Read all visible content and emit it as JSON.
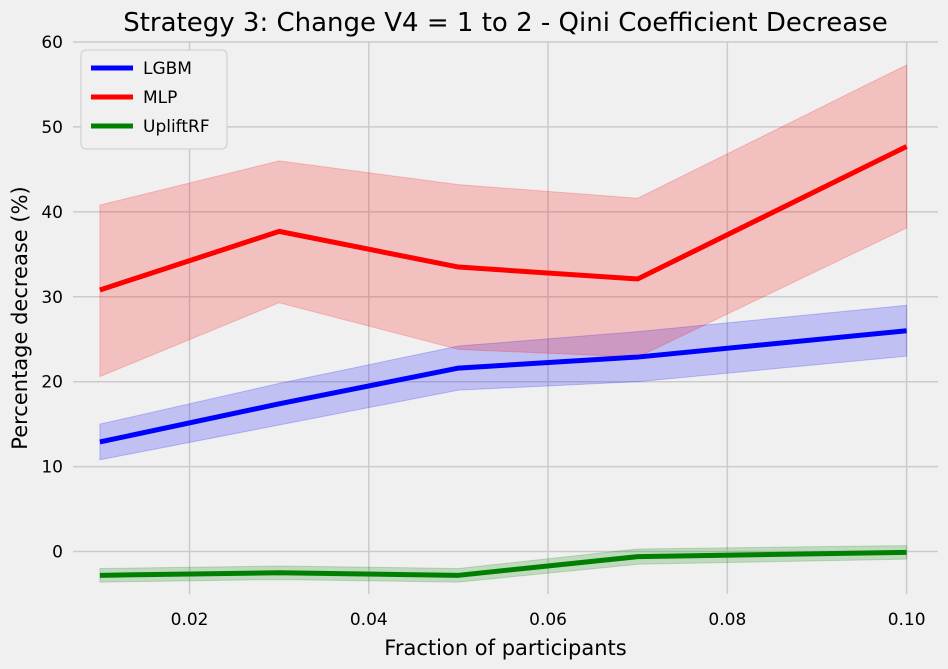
{
  "chart_data": {
    "type": "line",
    "title": "Strategy 3: Change V4 = 1 to 2 - Qini Coefficient Decrease",
    "xlabel": "Fraction of participants",
    "ylabel": "Percentage decrease (%)",
    "x": [
      0.01,
      0.03,
      0.05,
      0.07,
      0.1
    ],
    "xlim": [
      0.007,
      0.1035
    ],
    "ylim": [
      -5,
      60
    ],
    "xticks": [
      0.02,
      0.04,
      0.06,
      0.08,
      0.1
    ],
    "xtick_labels": [
      "0.02",
      "0.04",
      "0.06",
      "0.08",
      "0.10"
    ],
    "yticks": [
      0,
      10,
      20,
      30,
      40,
      50,
      60
    ],
    "ytick_labels": [
      "0",
      "10",
      "20",
      "30",
      "40",
      "50",
      "60"
    ],
    "grid": true,
    "legend_position": "upper-left",
    "series": [
      {
        "name": "LGBM",
        "color": "#0000ff",
        "values": [
          12.9,
          17.4,
          21.6,
          22.9,
          26.0
        ],
        "lower": [
          10.8,
          14.9,
          19.0,
          20.0,
          23.0
        ],
        "upper": [
          15.0,
          19.8,
          24.2,
          25.9,
          29.0
        ]
      },
      {
        "name": "MLP",
        "color": "#ff0000",
        "values": [
          30.8,
          37.7,
          33.5,
          32.1,
          47.7
        ],
        "lower": [
          20.6,
          29.3,
          23.8,
          22.9,
          38.1
        ],
        "upper": [
          40.8,
          46.0,
          43.2,
          41.6,
          57.3
        ]
      },
      {
        "name": "UpliftRF",
        "color": "#008000",
        "values": [
          -2.8,
          -2.5,
          -2.8,
          -0.6,
          -0.1
        ],
        "lower": [
          -3.6,
          -3.3,
          -3.6,
          -1.5,
          -0.9
        ],
        "upper": [
          -2.0,
          -1.7,
          -2.0,
          0.3,
          0.7
        ]
      }
    ]
  }
}
